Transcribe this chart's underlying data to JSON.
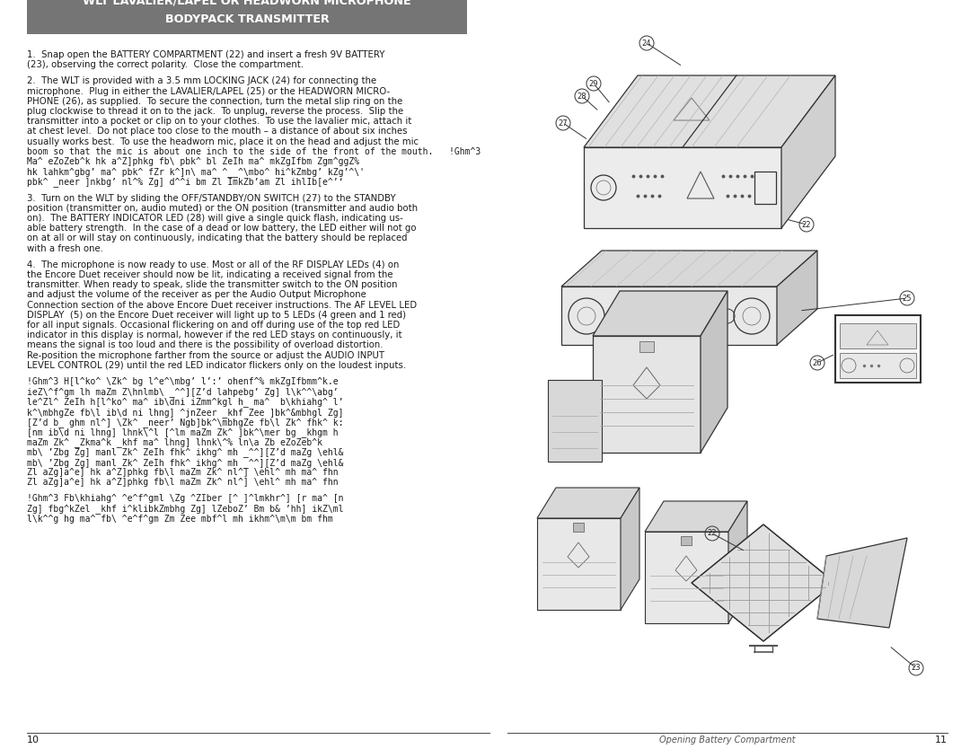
{
  "page_bg": "#ffffff",
  "header_bg": "#757575",
  "header_text_color": "#ffffff",
  "header_line1": "WLT LAVALIER/LAPEL OR HEADWORN MICROPHONE",
  "header_line2": "BODYPACK TRANSMITTER",
  "body_font_color": "#1a1a1a",
  "page_num_left": "10",
  "page_num_right": "11",
  "footer_label": "Opening Battery Compartment",
  "para1": "1.  Snap open the BATTERY COMPARTMENT (22) and insert a fresh 9V BATTERY\n(23), observing the correct polarity.  Close the compartment.",
  "para2_lines": [
    "2.  The WLT is provided with a 3.5 mm LOCKING JACK (24) for connecting the",
    "microphone.  Plug in either the LAVALIER/LAPEL (25) or the HEADWORN MICRO-",
    "PHONE (26), as supplied.  To secure the connection, turn the metal slip ring on the",
    "plug clockwise to thread it on to the jack.  To unplug, reverse the process.  Slip the",
    "transmitter into a pocket or clip on to your clothes.  To use the lavalier mic, attach it",
    "at chest level.  Do not place too close to the mouth – a distance of about six inches",
    "usually works best.  To use the headworn mic, place it on the head and adjust the mic",
    "boom so that the mic is about one inch to the side of the front of the mouth.   !Ghm^3",
    "Ma^ eZoZeb^k hk a^Z]phkg fb\\ pbk^ bl ZeIh ma^ mkZgIfbm Zgm^ggZ%",
    "hk lahkm^gbg’ ma^ pbk^ fZr k^]n\\ ma^ ^__^\\mbo^ hi^kZmbg’ kZg’^\\'",
    "pbk^ _neer ]nkbg’ nl^% Zg] d^^i bm Zl ImkZb’am Zl ihlIb[e^’‘"
  ],
  "para3_lines": [
    "3.  Turn on the WLT by sliding the OFF/STANDBY/ON SWITCH (27) to the STANDBY",
    "position (transmitter on, audio muted) or the ON position (transmitter and audio both",
    "on).  The BATTERY INDICATOR LED (28) will give a single quick flash, indicating us-",
    "able battery strength.  In the case of a dead or low battery, the LED either will not go",
    "on at all or will stay on continuously, indicating that the battery should be replaced",
    "with a fresh one."
  ],
  "para4_lines": [
    "4.  The microphone is now ready to use. Most or all of the RF DISPLAY LEDs (4) on",
    "the Encore Duet receiver should now be lit, indicating a received signal from the",
    "transmitter. When ready to speak, slide the transmitter switch to the ON position",
    "and adjust the volume of the receiver as per the Audio Output Microphone",
    "Connection section of the above Encore Duet receiver instructions. The AF LEVEL LED",
    "DISPLAY  (5) on the Encore Duet receiver will light up to 5 LEDs (4 green and 1 red)",
    "for all input signals. Occasional flickering on and off during use of the top red LED",
    "indicator in this display is normal, however if the red LED stays on continuously, it",
    "means the signal is too loud and there is the possibility of overload distortion.",
    "Re-position the microphone farther from the source or adjust the AUDIO INPUT",
    "LEVEL CONTROL (29) until the red LED indicator flickers only on the loudest inputs."
  ],
  "coded1_lines": [
    "!Ghm^3 H[l^ko^ \\Zk^ bg l^e^\\mbg’ l’:’ ohenf^% mkZgIfbmm^k.e",
    "ieZ\\^f^gm lh maZm Z\\hnlmb\\ _^^][Z’d lahpebg’ Zg] l\\k^^\\abg’",
    "le^Zl^ ZeIh h[l^ko^ ma^ ib\\dni iZmm^kgl h_ ma^  b\\khiahg^ l’",
    "k^\\mbhgZe fb\\l ib\\d ni lhng] ^jnZeer _khf Zee ]bk^&mbhgl Zg]",
    "[Z’d b_ ghm nl^] \\Zk^ _neer’ Ngb]bk^\\mbhgZe fb\\l Zk^ fhk^ k:",
    "[nm ib\\d ni lhng] lhnk\\^l [^lm maZm Zk^ ]bk^\\mer bg _khgm h",
    "maZm Zk^ _Zkma^k _khf ma^ lhng] lhnk\\^% ln\\a Zb eZoZeb^k",
    "mb\\ ’Zbg Zg] manl Zk^ ZeIh fhk^ ikhg^ mh _^^][Z’d maZg \\ehl&",
    "mb\\ ’Zbg Zg] manl Zk^ ZeIh fhk^ ikhg^ mh _^^][Z’d maZg \\ehl&",
    "Zl aZg]a^e] hk a^Z]phkg fb\\l maZm Zk^ nl^] \\ehl^ mh ma^ fhn",
    "Zl aZg]a^e] hk a^Z]phkg fb\\l maZm Zk^ nl^] \\ehl^ mh ma^ fhn"
  ],
  "coded2_lines": [
    "!Ghm^3 Fb\\khiahg^ ^e^f^gml \\Zg ^ZIber [^ ]^lmkhr^] [r ma^ [n",
    "Zg] fbg^kZel _khf i^klibkZmbhg Zg] lZeboZ’ Bm b& ’hh] ikZ\\ml",
    "l\\k^^g hg ma^ fb\\ ^e^f^gm Zm Zee mbf^l mh ikhm^\\m\\m bm fhm"
  ]
}
